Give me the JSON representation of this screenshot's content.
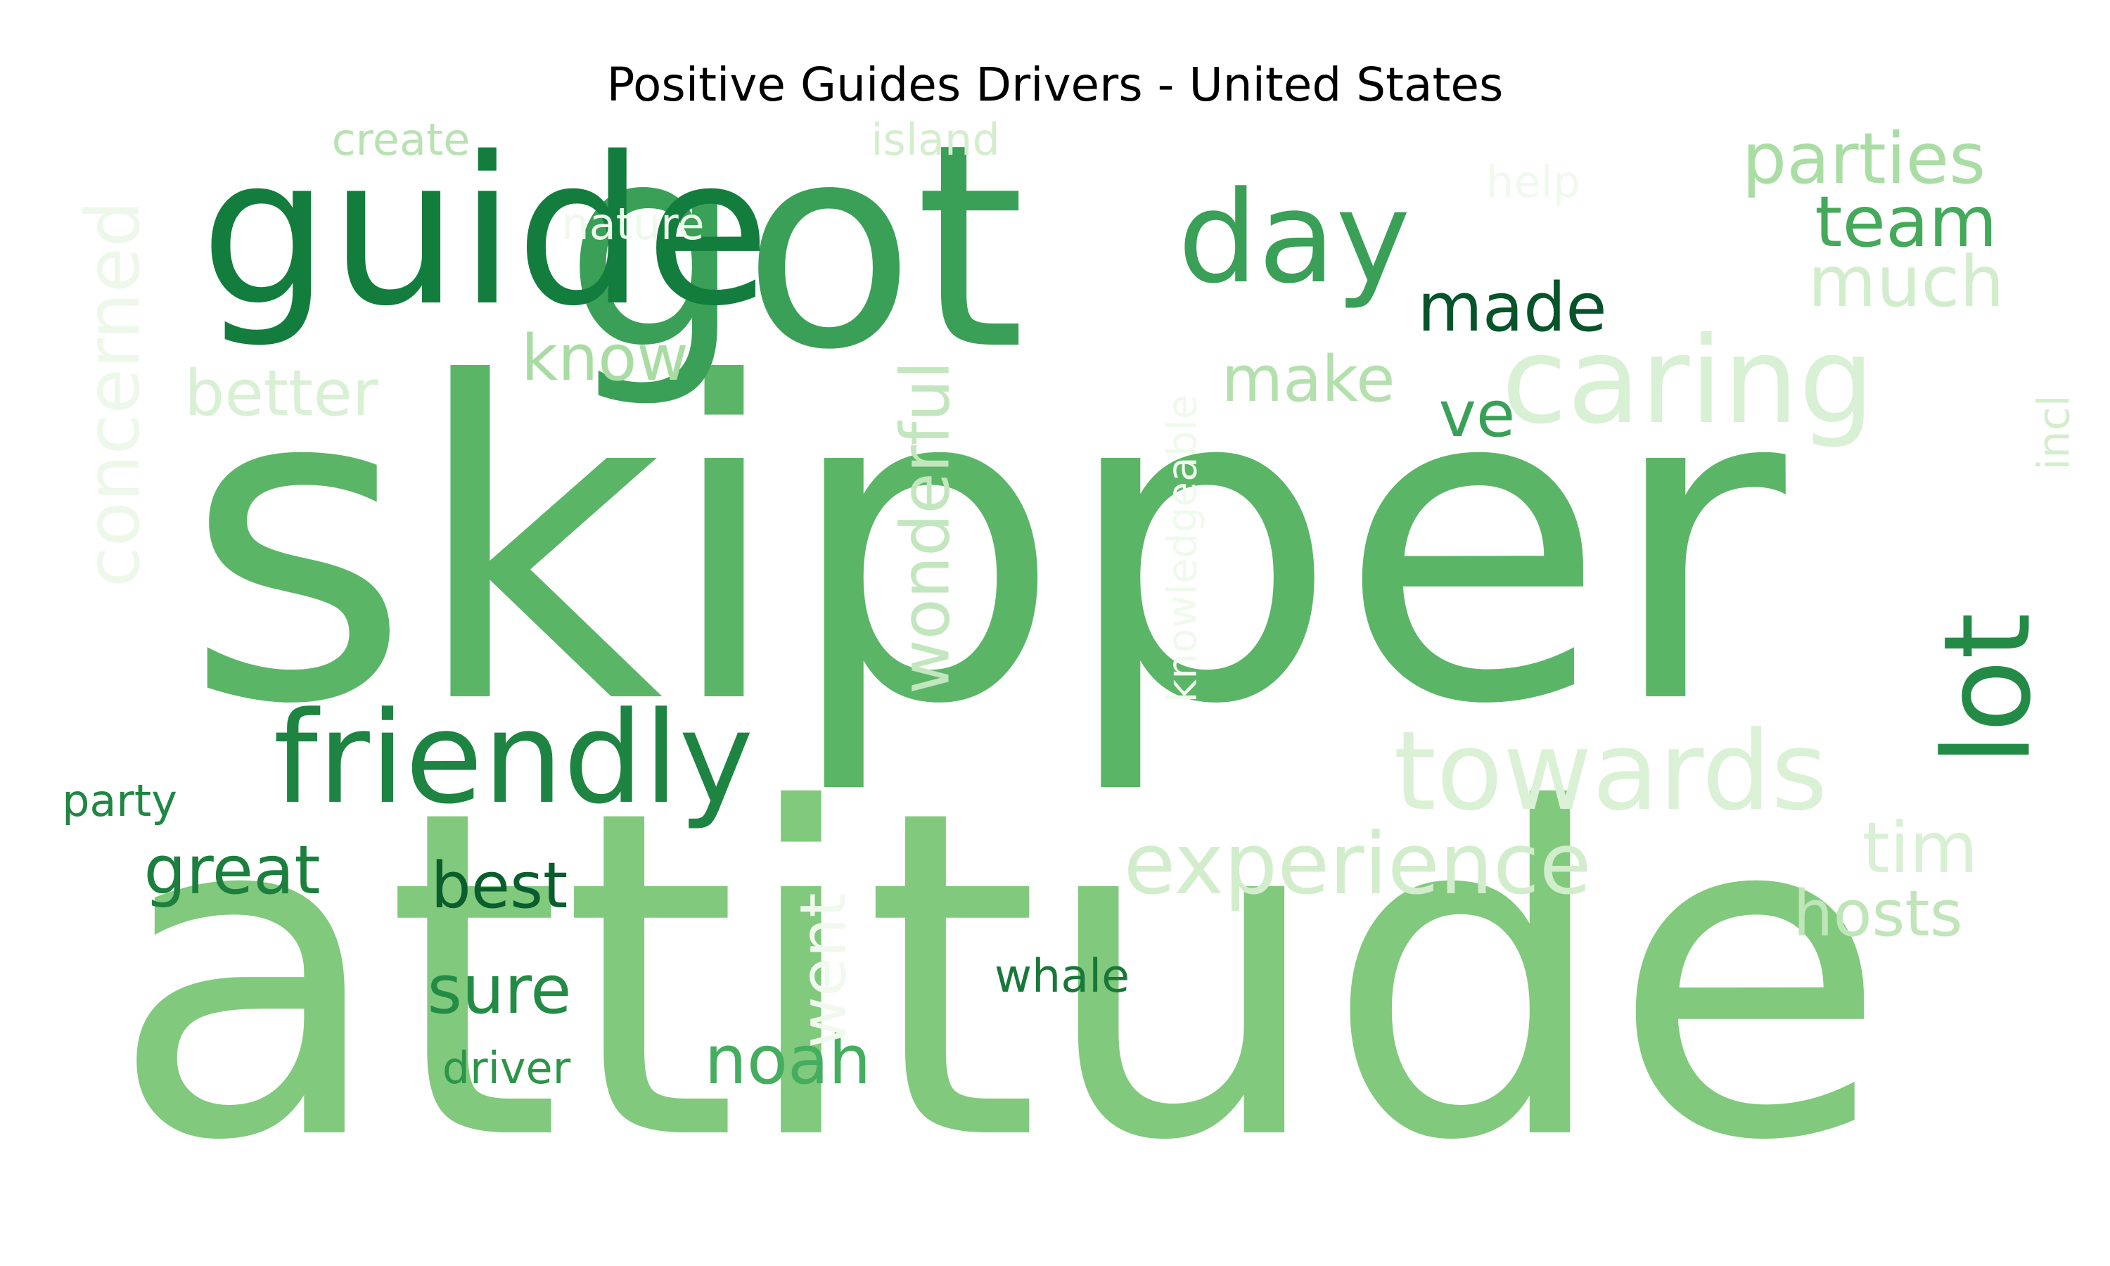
{
  "title": "Positive Guides Drivers - United States",
  "words": [
    {
      "text": "skipper",
      "color": "#5bb567",
      "vertical": false
    },
    {
      "text": "attitude",
      "color": "#81c97d",
      "vertical": false
    },
    {
      "text": "got",
      "color": "#3aa057",
      "vertical": false
    },
    {
      "text": "guide",
      "color": "#137d3d",
      "vertical": false
    },
    {
      "text": "day",
      "color": "#3aa057",
      "vertical": false
    },
    {
      "text": "friendly",
      "color": "#1d8441",
      "vertical": false
    },
    {
      "text": "caring",
      "color": "#d8f0d3",
      "vertical": false
    },
    {
      "text": "towards",
      "color": "#daf1d5",
      "vertical": false
    },
    {
      "text": "lot",
      "color": "#238b45",
      "vertical": true
    },
    {
      "text": "experience",
      "color": "#d2edcb",
      "vertical": false
    },
    {
      "text": "concerned",
      "color": "#edf8ea",
      "vertical": true
    },
    {
      "text": "wonderful",
      "color": "#c2e6bd",
      "vertical": true
    },
    {
      "text": "parties",
      "color": "#aadda4",
      "vertical": false
    },
    {
      "text": "team",
      "color": "#45a95b",
      "vertical": false
    },
    {
      "text": "much",
      "color": "#d2edcb",
      "vertical": false
    },
    {
      "text": "made",
      "color": "#07532a",
      "vertical": false
    },
    {
      "text": "make",
      "color": "#b3e0ac",
      "vertical": false
    },
    {
      "text": "know",
      "color": "#a8dca2",
      "vertical": false
    },
    {
      "text": "better",
      "color": "#d8f0d3",
      "vertical": false
    },
    {
      "text": "great",
      "color": "#1c7f3e",
      "vertical": false
    },
    {
      "text": "best",
      "color": "#0a5d2c",
      "vertical": false
    },
    {
      "text": "sure",
      "color": "#238b45",
      "vertical": false
    },
    {
      "text": "noah",
      "color": "#45ad5f",
      "vertical": false
    },
    {
      "text": "tim",
      "color": "#d8f0d3",
      "vertical": false
    },
    {
      "text": "hosts",
      "color": "#c0e5b9",
      "vertical": false
    },
    {
      "text": "ve",
      "color": "#3aa057",
      "vertical": false
    },
    {
      "text": "party",
      "color": "#1f8742",
      "vertical": false
    },
    {
      "text": "driver",
      "color": "#2b9548",
      "vertical": false
    },
    {
      "text": "whale",
      "color": "#19773a",
      "vertical": false
    },
    {
      "text": "went",
      "color": "#f1f9ee",
      "vertical": true
    },
    {
      "text": "create",
      "color": "#b8e2b2",
      "vertical": false
    },
    {
      "text": "island",
      "color": "#d4eecd",
      "vertical": false
    },
    {
      "text": "nature",
      "color": "#eef8eb",
      "vertical": false
    },
    {
      "text": "help",
      "color": "#f0f9ed",
      "vertical": false
    },
    {
      "text": "knowledgeable",
      "color": "#f0f9ed",
      "vertical": true
    },
    {
      "text": "incl",
      "color": "#d4eecd",
      "vertical": true
    }
  ]
}
